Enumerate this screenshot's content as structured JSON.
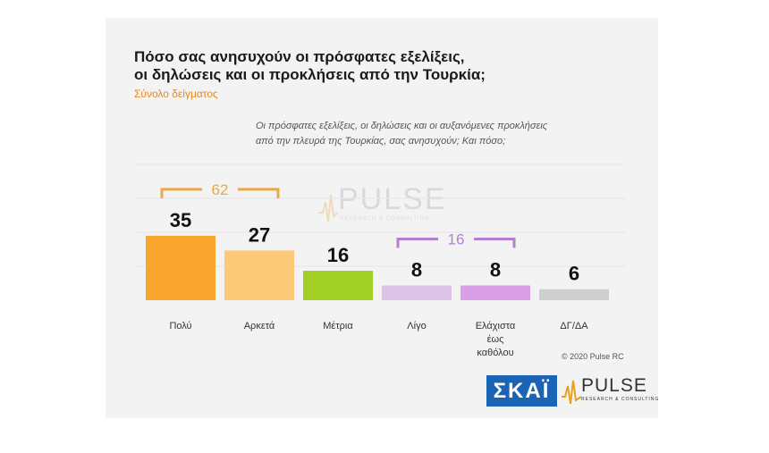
{
  "title_lines": [
    "Πόσο σας ανησυχούν οι πρόσφατες εξελίξεις,",
    "οι δηλώσεις και οι προκλήσεις από την Τουρκία;"
  ],
  "subtitle": "Σύνολο δείγματος",
  "question_lines": [
    "Οι πρόσφατες εξελίξεις, οι δηλώσεις και οι αυξανόμενες προκλήσεις",
    "από την πλευρά της Τουρκίας, σας ανησυχούν; Και πόσο;"
  ],
  "copyright": "© 2020 Pulse RC",
  "logos": {
    "skai": "ΣΚΑΪ",
    "pulse_word": "PULSE",
    "pulse_tag": "RESEARCH & CONSULTING",
    "watermark_word": "PULSE",
    "watermark_tag": "RESEARCH & CONSULTING"
  },
  "chart_data": {
    "type": "bar",
    "categories": [
      [
        "Πολύ"
      ],
      [
        "Αρκετά"
      ],
      [
        "Μέτρια"
      ],
      [
        "Λίγο"
      ],
      [
        "Ελάχιστα",
        "έως",
        "καθόλου"
      ],
      [
        "ΔΓ/ΔΑ"
      ]
    ],
    "values": [
      35,
      27,
      16,
      8,
      8,
      6
    ],
    "colors": [
      "#f7a52d",
      "#fbc977",
      "#a2cf26",
      "#dbc4e8",
      "#d9a0e8",
      "#cfcfcf"
    ],
    "groups": [
      {
        "label": "62",
        "from": 0,
        "to": 1,
        "color": "#e9a84a"
      },
      {
        "label": "16",
        "from": 3,
        "to": 4,
        "color": "#b47fd0"
      }
    ],
    "ylim": [
      0,
      40
    ],
    "grid": true
  }
}
